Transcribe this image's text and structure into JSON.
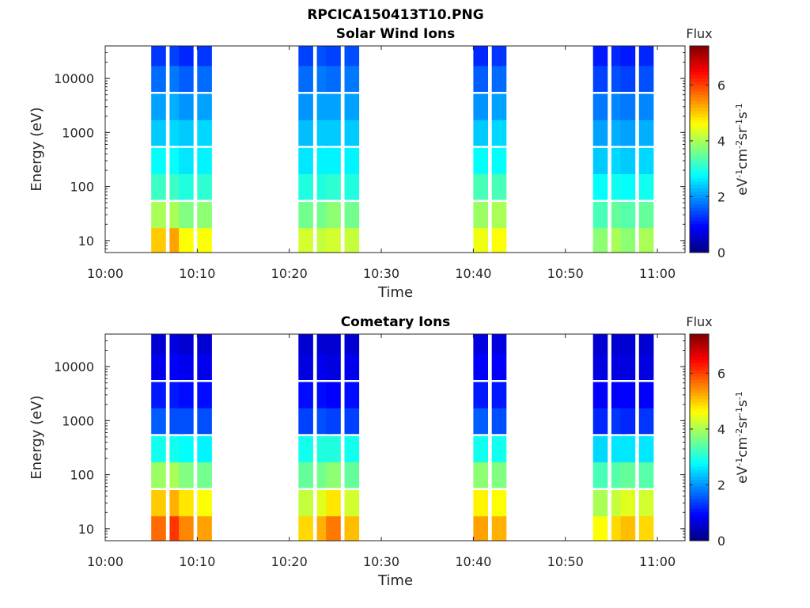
{
  "figure_title": "RPCICA150413T10.PNG",
  "chart_data": [
    {
      "type": "heatmap",
      "title": "Solar Wind Ions",
      "xlabel": "Time",
      "ylabel": "Energy (eV)",
      "x_ticks": [
        "10:00",
        "10:10",
        "10:20",
        "10:30",
        "10:40",
        "10:50",
        "11:00"
      ],
      "xlim": [
        "10:00",
        "11:03"
      ],
      "y_scale": "log",
      "y_ticks": [
        10,
        100,
        1000,
        10000
      ],
      "ylim": [
        6,
        40000
      ],
      "colorbar": {
        "title": "Flux",
        "label": "eV-1cm-2sr-1s-1",
        "ticks": [
          0,
          2,
          4,
          6
        ],
        "range": [
          0,
          7.4
        ],
        "colormap": "jet"
      },
      "energy_bands_eV": [
        10,
        30,
        100,
        300,
        1000,
        3000,
        10000,
        30000
      ],
      "time_columns": [
        "10:05",
        "10:07",
        "10:08",
        "10:10",
        "10:21",
        "10:23",
        "10:24",
        "10:26",
        "10:40",
        "10:42",
        "10:53",
        "10:55",
        "10:56",
        "10:58"
      ],
      "flux": [
        [
          5.0,
          5.3,
          4.6,
          4.6,
          4.3,
          4.2,
          4.3,
          4.2,
          4.5,
          4.6,
          3.8,
          4.0,
          3.8,
          4.0
        ],
        [
          4.0,
          4.0,
          3.7,
          3.8,
          3.6,
          3.6,
          3.8,
          3.6,
          3.9,
          4.0,
          3.3,
          3.5,
          3.4,
          3.5
        ],
        [
          3.2,
          3.2,
          3.0,
          3.1,
          3.0,
          3.0,
          3.1,
          3.0,
          3.3,
          3.3,
          2.8,
          2.9,
          2.8,
          2.9
        ],
        [
          2.8,
          2.8,
          2.6,
          2.7,
          2.6,
          2.7,
          2.7,
          2.7,
          2.8,
          2.8,
          2.4,
          2.5,
          2.4,
          2.5
        ],
        [
          2.4,
          2.5,
          2.4,
          2.5,
          2.3,
          2.4,
          2.4,
          2.4,
          2.4,
          2.5,
          2.1,
          2.2,
          2.1,
          2.2
        ],
        [
          2.1,
          2.2,
          2.0,
          2.1,
          2.0,
          2.1,
          2.1,
          2.1,
          2.0,
          2.1,
          1.8,
          1.9,
          1.8,
          1.9
        ],
        [
          1.7,
          1.8,
          1.6,
          1.7,
          1.7,
          1.8,
          1.7,
          1.8,
          1.6,
          1.7,
          1.4,
          1.5,
          1.4,
          1.5
        ],
        [
          1.3,
          1.4,
          1.2,
          1.3,
          1.4,
          1.5,
          1.4,
          1.5,
          1.2,
          1.3,
          1.1,
          1.2,
          1.1,
          1.2
        ]
      ]
    },
    {
      "type": "heatmap",
      "title": "Cometary Ions",
      "xlabel": "Time",
      "ylabel": "Energy (eV)",
      "x_ticks": [
        "10:00",
        "10:10",
        "10:20",
        "10:30",
        "10:40",
        "10:50",
        "11:00"
      ],
      "xlim": [
        "10:00",
        "11:03"
      ],
      "y_scale": "log",
      "y_ticks": [
        10,
        100,
        1000,
        10000
      ],
      "ylim": [
        6,
        40000
      ],
      "colorbar": {
        "title": "Flux",
        "label": "eV-1cm-2sr-1s-1",
        "ticks": [
          0,
          2,
          4,
          6
        ],
        "range": [
          0,
          7.4
        ],
        "colormap": "jet"
      },
      "energy_bands_eV": [
        10,
        30,
        100,
        300,
        1000,
        3000,
        10000,
        30000
      ],
      "time_columns": [
        "10:05",
        "10:07",
        "10:08",
        "10:10",
        "10:21",
        "10:23",
        "10:24",
        "10:26",
        "10:40",
        "10:42",
        "10:53",
        "10:55",
        "10:56",
        "10:58"
      ],
      "flux": [
        [
          5.7,
          6.1,
          5.5,
          5.3,
          4.9,
          5.2,
          5.6,
          5.1,
          5.3,
          5.2,
          4.6,
          4.9,
          5.1,
          4.9
        ],
        [
          5.0,
          5.2,
          4.8,
          4.6,
          4.2,
          4.4,
          4.8,
          4.3,
          4.7,
          4.6,
          4.0,
          4.2,
          4.4,
          4.3
        ],
        [
          3.9,
          4.0,
          3.7,
          3.6,
          3.5,
          3.6,
          3.8,
          3.5,
          3.8,
          3.7,
          3.3,
          3.4,
          3.5,
          3.4
        ],
        [
          2.9,
          2.9,
          2.8,
          2.7,
          2.9,
          3.0,
          3.0,
          2.9,
          2.9,
          2.9,
          2.5,
          2.6,
          2.6,
          2.6
        ],
        [
          1.6,
          1.5,
          1.5,
          1.5,
          1.4,
          1.5,
          1.4,
          1.4,
          1.6,
          1.5,
          1.2,
          1.3,
          1.2,
          1.3
        ],
        [
          1.1,
          1.1,
          1.0,
          1.0,
          1.0,
          1.0,
          0.9,
          1.0,
          1.1,
          1.1,
          0.9,
          0.9,
          0.9,
          0.9
        ],
        [
          0.8,
          0.9,
          0.8,
          0.8,
          0.7,
          0.8,
          0.7,
          0.8,
          0.9,
          0.9,
          0.7,
          0.7,
          0.7,
          0.7
        ],
        [
          0.6,
          0.7,
          0.6,
          0.6,
          0.6,
          0.6,
          0.6,
          0.6,
          0.7,
          0.7,
          0.6,
          0.6,
          0.6,
          0.6
        ]
      ]
    }
  ]
}
